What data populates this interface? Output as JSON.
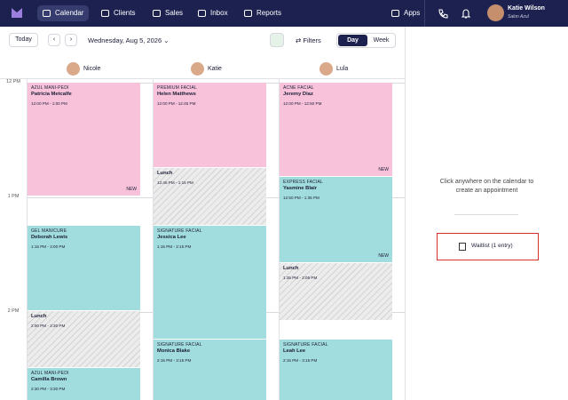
{
  "nav": {
    "items": [
      "Calendar",
      "Clients",
      "Sales",
      "Inbox",
      "Reports"
    ],
    "apps": "Apps",
    "user": {
      "name": "Katie Wilson",
      "salon": "Salon Azul"
    }
  },
  "toolbar": {
    "today": "Today",
    "date": "Wednesday, Aug 5, 2026",
    "filters": "Filters",
    "views": [
      "Day",
      "Week"
    ]
  },
  "staff": [
    "Nicole",
    "Katie",
    "Lula"
  ],
  "time_labels": [
    "12 PM",
    "1 PM",
    "2 PM"
  ],
  "appointments": [
    [
      {
        "service": "AZUL MANI-PEDI",
        "client": "Patricia Metcalfe",
        "time": "12:00 PM - 1:00 PM",
        "tag": "NEW"
      },
      {
        "service": "GEL MANICURE",
        "client": "Deborah Lewis",
        "time": "1:15 PM - 2:00 PM"
      },
      {
        "service": "Lunch",
        "time": "2:00 PM - 2:30 PM"
      },
      {
        "service": "AZUL MANI-PEDI",
        "client": "Camilla Brown",
        "time": "2:30 PM - 3:30 PM"
      }
    ],
    [
      {
        "service": "PREMIUM FACIAL",
        "client": "Helen Matthews",
        "time": "12:00 PM - 12:45 PM"
      },
      {
        "service": "Lunch",
        "time": "12:45 PM - 1:15 PM"
      },
      {
        "service": "SIGNATURE FACIAL",
        "client": "Jessica Lee",
        "time": "1:15 PM - 2:15 PM"
      },
      {
        "service": "SIGNATURE FACIAL",
        "client": "Monica Blake",
        "time": "2:15 PM - 3:15 PM"
      }
    ],
    [
      {
        "service": "ACNE FACIAL",
        "client": "Jeremy Diaz",
        "time": "12:00 PM - 12:50 PM",
        "tag": "NEW"
      },
      {
        "service": "EXPRESS FACIAL",
        "client": "Yasmine Blair",
        "time": "12:50 PM - 1:35 PM",
        "tag": "NEW"
      },
      {
        "service": "Lunch",
        "time": "1:35 PM - 2:05 PM"
      },
      {
        "service": "SIGNATURE FACIAL",
        "client": "Leah Lee",
        "time": "2:15 PM - 3:15 PM"
      }
    ]
  ],
  "side_panel": {
    "hint": "Click anywhere on the calendar to create an appointment",
    "waitlist": "Waitlist (1 entry)"
  }
}
